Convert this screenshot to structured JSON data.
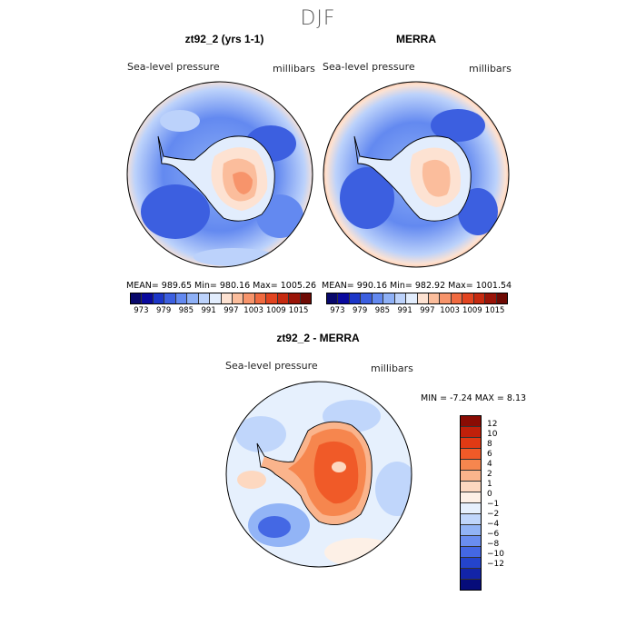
{
  "figure": {
    "title": "DJF",
    "panels": [
      {
        "title": "zt92_2 (yrs 1-1)",
        "variable": "Sea-level pressure",
        "units": "millibars",
        "stats": "MEAN= 989.65   Min= 980.16   Max= 1005.26"
      },
      {
        "title": "MERRA",
        "variable": "Sea-level pressure",
        "units": "millibars",
        "stats": "MEAN= 990.16   Min= 982.92   Max= 1001.54"
      },
      {
        "title": "zt92_2 - MERRA",
        "variable": "Sea-level pressure",
        "units": "millibars",
        "stats": "MIN =   -7.24  MAX =    8.13"
      }
    ],
    "colorbar_top": {
      "ticks": [
        "973",
        "979",
        "985",
        "991",
        "997",
        "1003",
        "1009",
        "1015"
      ],
      "colors": [
        "#08086b",
        "#0a0a9e",
        "#1c36c8",
        "#3c5fe0",
        "#6389f0",
        "#8eb0f6",
        "#bcd2fb",
        "#e2edfd",
        "#fde2d2",
        "#fbbd9c",
        "#f7946b",
        "#f06a40",
        "#e24420",
        "#c62a10",
        "#9a1408",
        "#6e0a04"
      ]
    },
    "colorbar_diff": {
      "ticks": [
        "12",
        "10",
        "8",
        "6",
        "4",
        "2",
        "1",
        "0",
        "−1",
        "−2",
        "−4",
        "−6",
        "−8",
        "−10",
        "−12"
      ],
      "colors": [
        "#8a0c04",
        "#c0200a",
        "#e03a14",
        "#f05a28",
        "#f6864e",
        "#fab48c",
        "#fdd8c0",
        "#fdf0e6",
        "#e6f0fd",
        "#c0d6fb",
        "#92b4f6",
        "#6a8ef0",
        "#4468e4",
        "#2444cc",
        "#1224a8",
        "#060c7a"
      ]
    }
  }
}
